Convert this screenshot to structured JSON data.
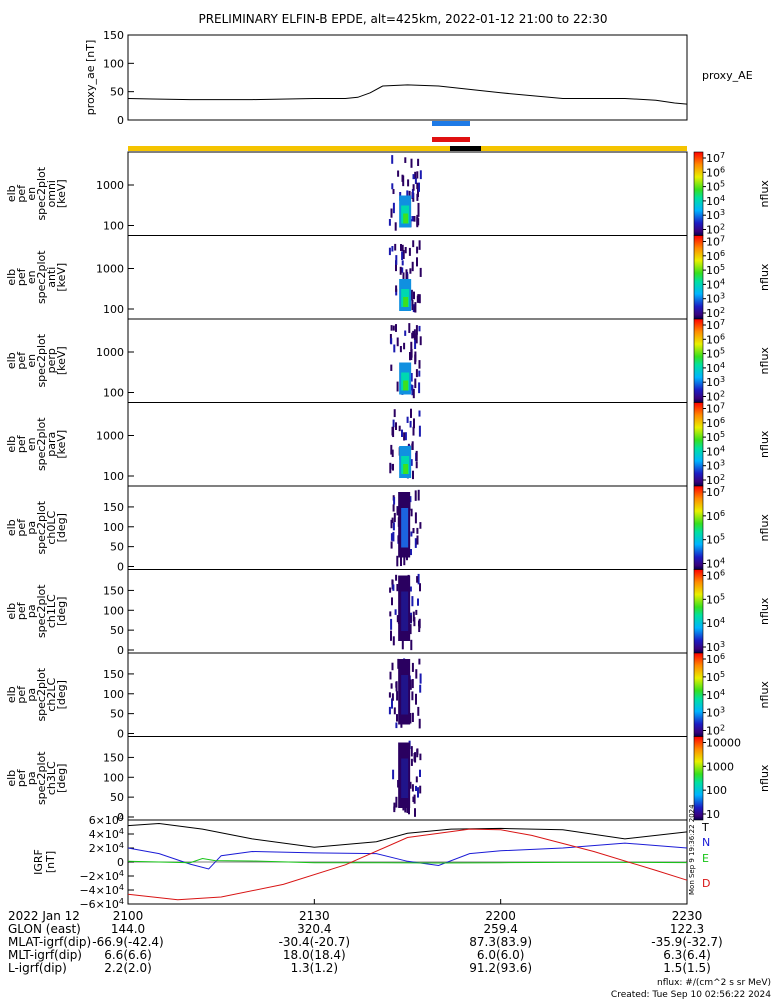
{
  "title": "PRELIMINARY ELFIN-B EPDE, alt=425km, 2022-01-12 21:00 to 22:30",
  "footer": {
    "nflux_units": "nflux: #/(cm^2 s sr MeV)",
    "created": "Created: Tue Sep 10 02:56:22 2024",
    "vertical_stamp": "Mon Sep 9 19:36:22 2024"
  },
  "colors": {
    "science_zone_bar": "#f5c400",
    "conjunction_blue": "#1e7ae6",
    "conjunction_red": "#e01010",
    "igrf_T": "#000000",
    "igrf_N": "#1b1bd6",
    "igrf_E": "#16c416",
    "igrf_D": "#d81414"
  },
  "chart_data": [
    {
      "type": "line",
      "ylabel": "proxy_ae [nT]",
      "legend": "proxy_AE",
      "ylim": [
        0,
        150
      ],
      "yticks": [
        "0",
        "50",
        "100",
        "150"
      ],
      "x": [
        0,
        4,
        10,
        20,
        30,
        35,
        37,
        39,
        41,
        45,
        50,
        60,
        70,
        80,
        85,
        88,
        90
      ],
      "values": [
        38,
        37,
        36,
        36,
        38,
        38,
        40,
        48,
        60,
        62,
        60,
        48,
        38,
        38,
        35,
        30,
        28
      ]
    },
    {
      "type": "heatmap",
      "panels": [
        {
          "ylabel": "elb pef en spec2plot omni [keV]",
          "yticks": [
            "100",
            "1000"
          ],
          "colorbar": {
            "label": "nflux",
            "ticks": [
              "10^2",
              "10^3",
              "10^4",
              "10^5",
              "10^6",
              "10^7"
            ]
          }
        },
        {
          "ylabel": "elb pef en spec2plot anti [keV]",
          "yticks": [
            "100",
            "1000"
          ],
          "colorbar": {
            "label": "nflux",
            "ticks": [
              "10^2",
              "10^3",
              "10^4",
              "10^5",
              "10^6",
              "10^7"
            ]
          }
        },
        {
          "ylabel": "elb pef en spec2plot perp [keV]",
          "yticks": [
            "100",
            "1000"
          ],
          "colorbar": {
            "label": "nflux",
            "ticks": [
              "10^2",
              "10^3",
              "10^4",
              "10^5",
              "10^6",
              "10^7"
            ]
          }
        },
        {
          "ylabel": "elb pef en spec2plot para [keV]",
          "yticks": [
            "100",
            "1000"
          ],
          "colorbar": {
            "label": "nflux",
            "ticks": [
              "10^2",
              "10^3",
              "10^4",
              "10^5",
              "10^6",
              "10^7"
            ]
          }
        },
        {
          "ylabel": "elb pef pa spec2plot ch0LC [deg]",
          "yticks": [
            "0",
            "50",
            "100",
            "150"
          ],
          "colorbar": {
            "label": "nflux",
            "ticks": [
              "10^4",
              "10^5",
              "10^6",
              "10^7"
            ]
          }
        },
        {
          "ylabel": "elb pef pa spec2plot ch1LC [deg]",
          "yticks": [
            "0",
            "50",
            "100",
            "150"
          ],
          "colorbar": {
            "label": "nflux",
            "ticks": [
              "10^3",
              "10^4",
              "10^5",
              "10^6"
            ]
          }
        },
        {
          "ylabel": "elb pef pa spec2plot ch2LC [deg]",
          "yticks": [
            "0",
            "50",
            "100",
            "150"
          ],
          "colorbar": {
            "label": "nflux",
            "ticks": [
              "10^2",
              "10^3",
              "10^4",
              "10^5",
              "10^6"
            ]
          }
        },
        {
          "ylabel": "elb pef pa spec2plot ch3LC [deg]",
          "yticks": [
            "0",
            "50",
            "100",
            "150"
          ],
          "colorbar": {
            "label": "nflux",
            "ticks": [
              "10",
              "100",
              "1000",
              "10000"
            ]
          }
        }
      ],
      "data_interval_minutes": [
        42,
        47
      ]
    },
    {
      "type": "line",
      "ylabel": "IGRF [nT]",
      "ylim": [
        -60000,
        60000
      ],
      "yticks": [
        "6×10^4",
        "4×10^4",
        "2×10^4",
        "0",
        "−2×10^4",
        "−4×10^4",
        "−6×10^4"
      ],
      "series": [
        {
          "name": "T",
          "x": [
            0,
            5,
            12,
            20,
            30,
            40,
            45,
            52,
            60,
            70,
            80,
            90
          ],
          "values": [
            52000,
            55000,
            47000,
            33000,
            21000,
            29000,
            41000,
            47000,
            48000,
            46000,
            33000,
            43000
          ]
        },
        {
          "name": "N",
          "x": [
            0,
            5,
            10,
            13,
            15,
            20,
            30,
            40,
            45,
            50,
            55,
            60,
            70,
            80,
            90
          ],
          "values": [
            20000,
            12000,
            -3000,
            -10000,
            9000,
            15000,
            13000,
            12000,
            1000,
            -5000,
            12000,
            16000,
            20000,
            27000,
            20000
          ]
        },
        {
          "name": "E",
          "x": [
            0,
            10,
            12,
            14,
            20,
            30,
            40,
            50,
            60,
            70,
            80,
            90
          ],
          "values": [
            1000,
            -1000,
            5000,
            2000,
            1500,
            -1000,
            -1000,
            -1500,
            -1000,
            -500,
            -500,
            -800
          ]
        },
        {
          "name": "D",
          "x": [
            0,
            8,
            15,
            25,
            35,
            45,
            55,
            60,
            65,
            75,
            85,
            90
          ],
          "values": [
            -46000,
            -54000,
            -50000,
            -32000,
            -4000,
            35000,
            47000,
            46000,
            38000,
            15000,
            -12000,
            -26000
          ]
        }
      ]
    }
  ],
  "orbit_table": {
    "header_label": "2022 Jan 12",
    "times": [
      "2100",
      "2130",
      "2200",
      "2230"
    ],
    "rows": [
      {
        "label": "GLON (east)",
        "values": [
          "144.0",
          "320.4",
          "259.4",
          "122.3"
        ]
      },
      {
        "label": "MLAT-igrf(dip)",
        "values": [
          "-66.9(-42.4)",
          "-30.4(-20.7)",
          "87.3(83.9)",
          "-35.9(-32.7)"
        ]
      },
      {
        "label": "MLT-igrf(dip)",
        "values": [
          "6.6(6.6)",
          "18.0(18.4)",
          "6.0(6.0)",
          "6.3(6.4)"
        ]
      },
      {
        "label": "L-igrf(dip)",
        "values": [
          "2.2(2.0)",
          "1.3(1.2)",
          "91.2(93.6)",
          "1.5(1.5)"
        ]
      }
    ]
  }
}
